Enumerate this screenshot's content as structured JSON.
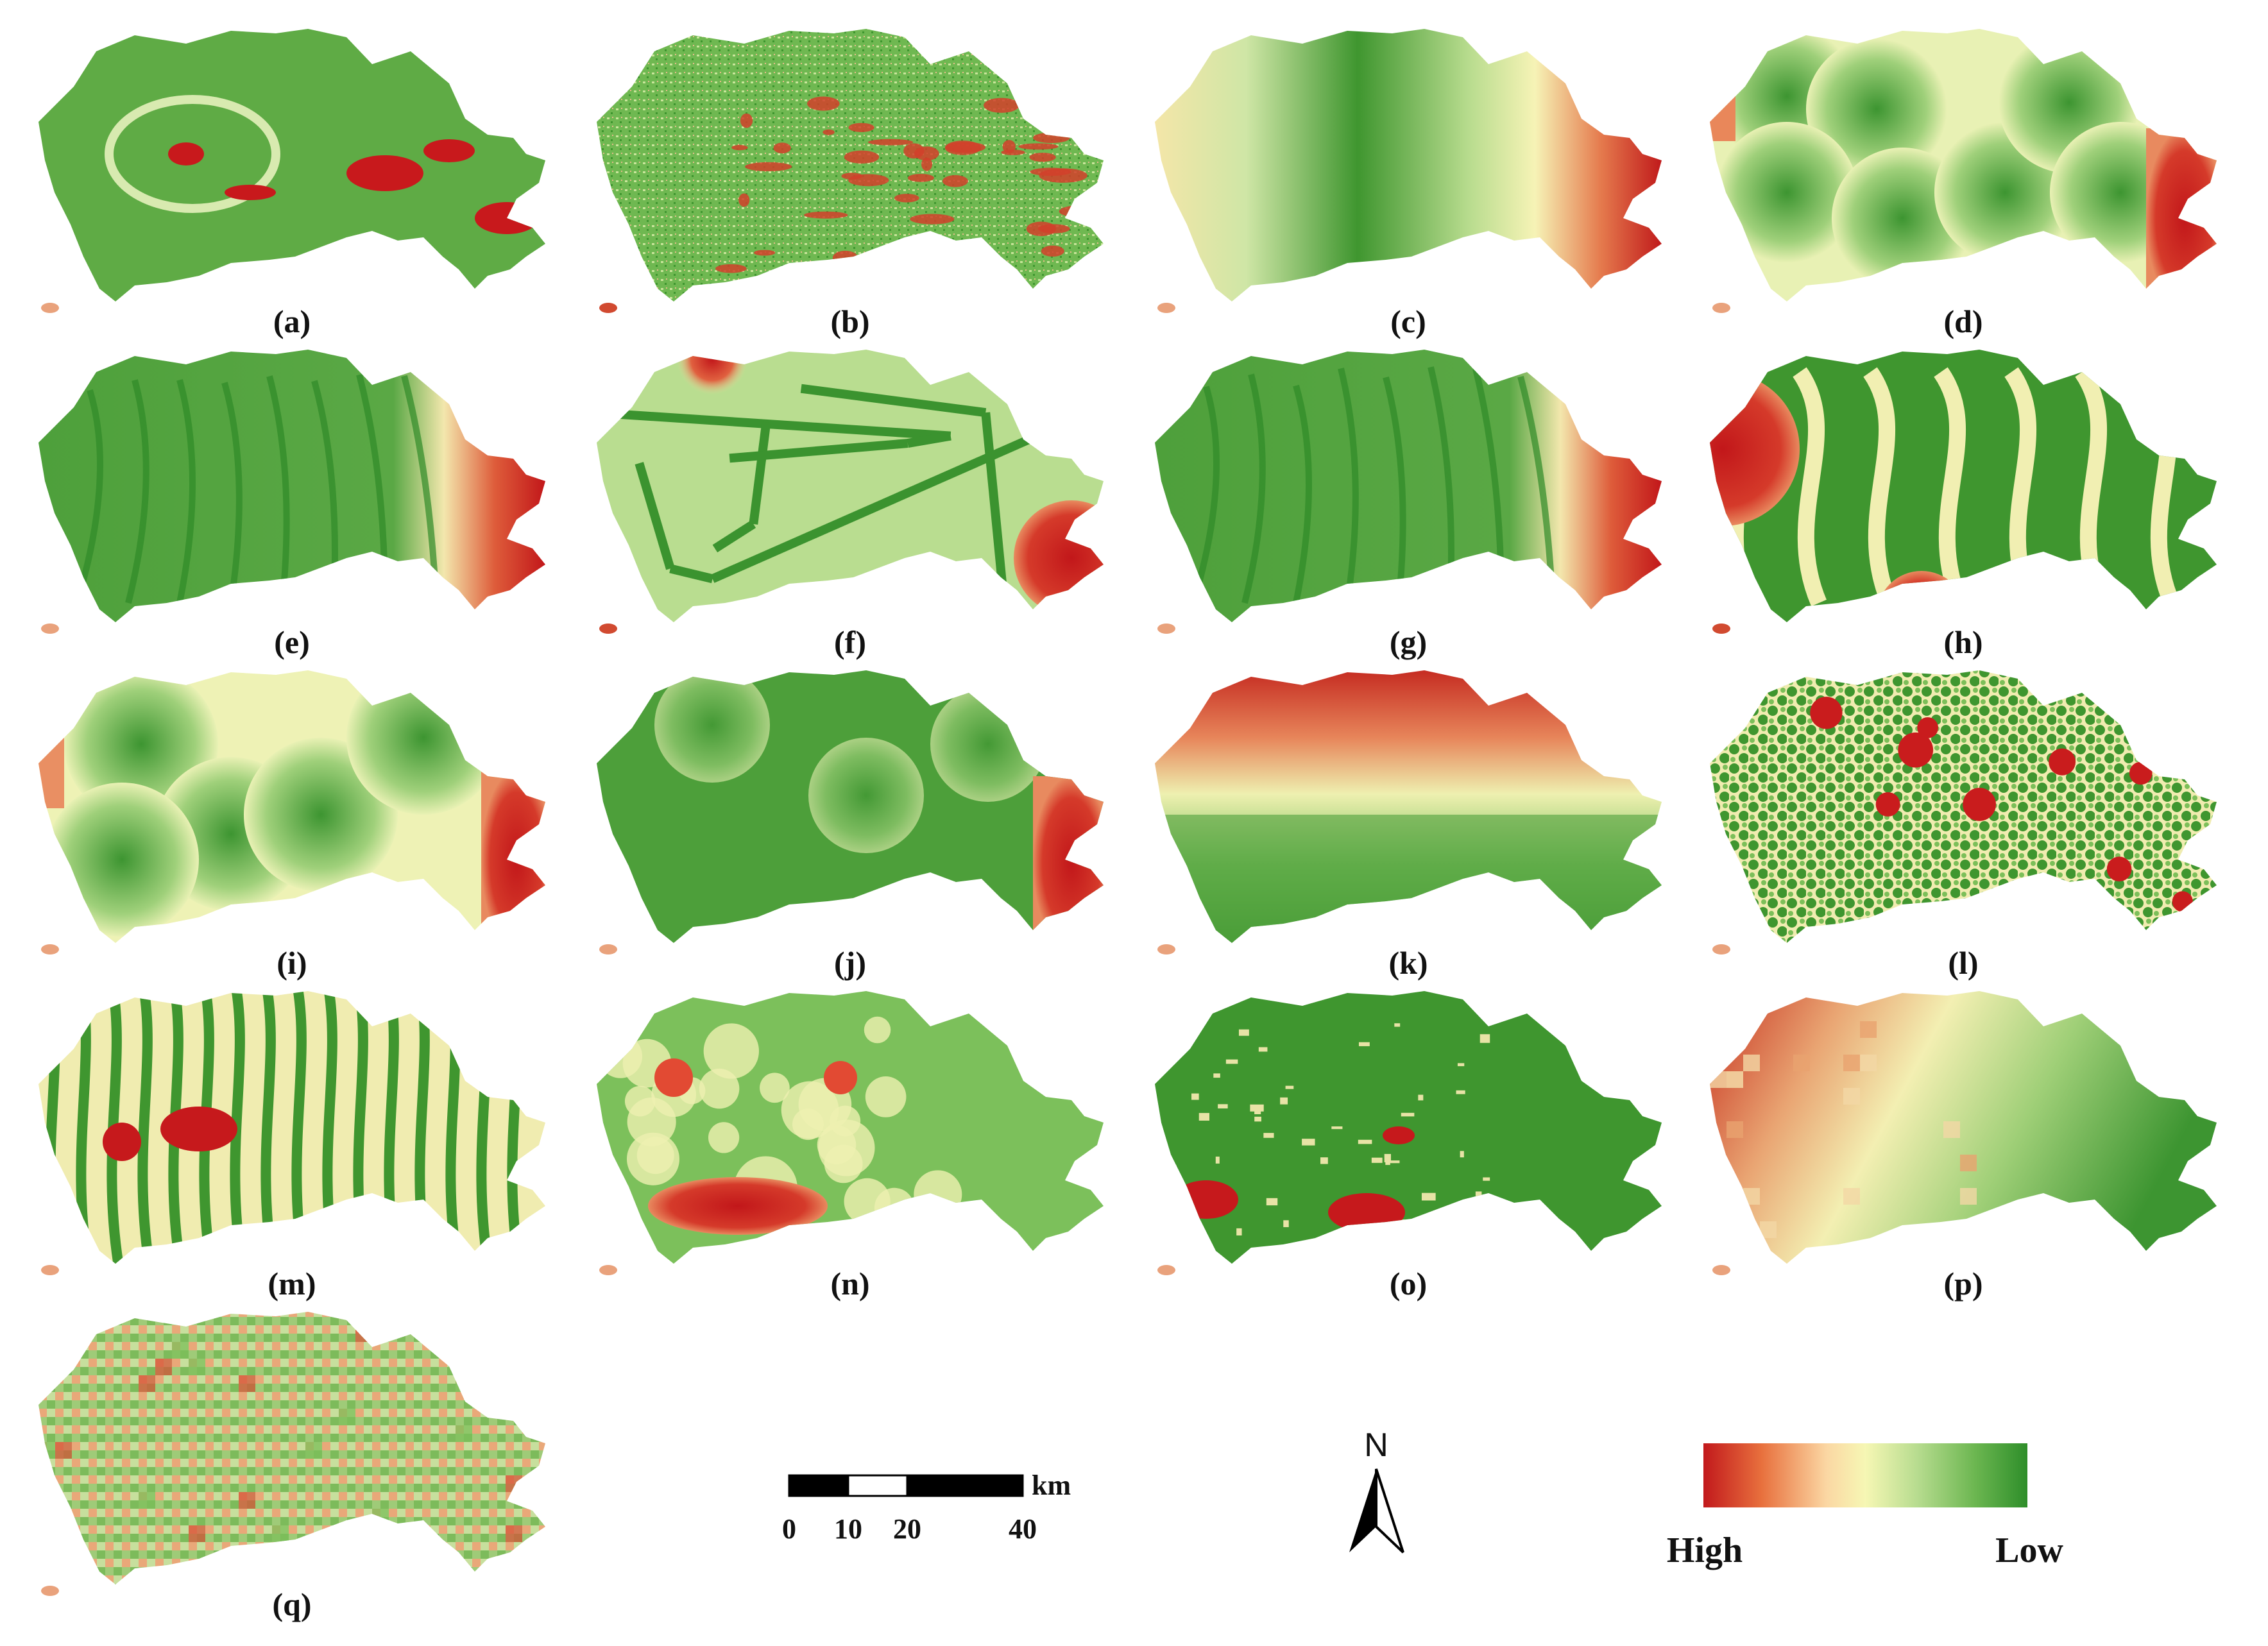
{
  "figure": {
    "panels": [
      {
        "label": "(a)",
        "pattern": "terrain-low-with-red-patches"
      },
      {
        "label": "(b)",
        "pattern": "fine-speckle-mixed"
      },
      {
        "label": "(c)",
        "pattern": "smooth-gradient-high-east"
      },
      {
        "label": "(d)",
        "pattern": "cells-high-east"
      },
      {
        "label": "(e)",
        "pattern": "valleys-high-east"
      },
      {
        "label": "(f)",
        "pattern": "network-high-east-and-north"
      },
      {
        "label": "(g)",
        "pattern": "valleys-high-east"
      },
      {
        "label": "(h)",
        "pattern": "contours-high-west"
      },
      {
        "label": "(i)",
        "pattern": "cells-high-east-and-west"
      },
      {
        "label": "(j)",
        "pattern": "cells-low-high-east"
      },
      {
        "label": "(k)",
        "pattern": "gradient-high-north"
      },
      {
        "label": "(l)",
        "pattern": "dense-blobs"
      },
      {
        "label": "(m)",
        "pattern": "river-network"
      },
      {
        "label": "(n)",
        "pattern": "kernel-density-high-southwest"
      },
      {
        "label": "(o)",
        "pattern": "urban-fine-red-southwest"
      },
      {
        "label": "(p)",
        "pattern": "coarse-grid-high-west"
      },
      {
        "label": "(q)",
        "pattern": "coarse-grid-mixed"
      }
    ]
  },
  "scale_bar": {
    "unit": "km",
    "ticks": [
      "0",
      "10",
      "20",
      "40"
    ]
  },
  "north_arrow": {
    "label": "N",
    "icon": "north-arrow-icon"
  },
  "legend": {
    "high_label": "High",
    "low_label": "Low",
    "colors": [
      "#c2191c",
      "#e8703d",
      "#fbd7a3",
      "#f6f7b4",
      "#b7dc8f",
      "#6bb650",
      "#2e8e2a"
    ]
  },
  "palette": {
    "high": "#c8181b",
    "mid_high": "#e9754a",
    "mid": "#f4f3b3",
    "mid_low": "#9ccc70",
    "low": "#3d9531"
  }
}
